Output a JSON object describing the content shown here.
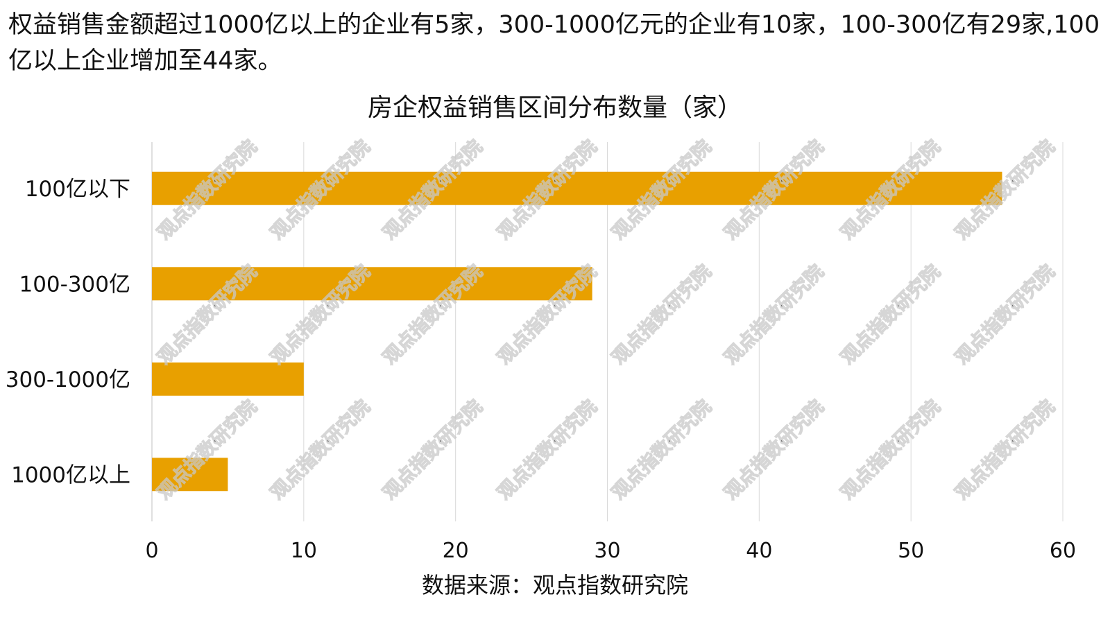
{
  "header": {
    "summary": "权益销售金额超过1000亿以上的企业有5家，300-1000亿元的企业有10家，100-300亿有29家,100亿以上企业增加至44家。"
  },
  "source_note": "数据来源：观点指数研究院",
  "watermark": "观点指数研究院",
  "colors": {
    "bar": "#E8A000",
    "grid": "#D9D9D9",
    "axis": "#BFBFBF"
  },
  "chart_data": {
    "type": "bar",
    "orientation": "horizontal",
    "title": "房企权益销售区间分布数量（家）",
    "categories": [
      "100亿以下",
      "100-300亿",
      "300-1000亿",
      "1000亿以上"
    ],
    "values": [
      56,
      29,
      10,
      5
    ],
    "xlim": [
      0,
      60
    ],
    "x_ticks": [
      0,
      10,
      20,
      30,
      40,
      50,
      60
    ],
    "xlabel": "",
    "ylabel": "",
    "grid": "vertical",
    "legend": "none"
  }
}
